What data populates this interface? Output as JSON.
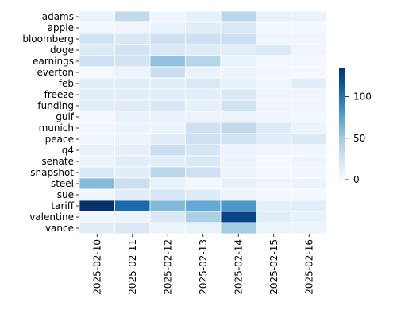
{
  "chart_data": {
    "type": "heatmap",
    "rows": [
      "adams",
      "apple",
      "bloomberg",
      "doge",
      "earnings",
      "everton",
      "feb",
      "freeze",
      "funding",
      "gulf",
      "munich",
      "peace",
      "q4",
      "senate",
      "snapshot",
      "steel",
      "sue",
      "tariff",
      "valentine",
      "vance"
    ],
    "columns": [
      "2025-02-10",
      "2025-02-11",
      "2025-02-12",
      "2025-02-13",
      "2025-02-14",
      "2025-02-15",
      "2025-02-16"
    ],
    "values": [
      [
        8,
        35,
        5,
        12,
        38,
        10,
        8
      ],
      [
        3,
        6,
        10,
        15,
        20,
        3,
        3
      ],
      [
        25,
        20,
        28,
        28,
        30,
        6,
        6
      ],
      [
        18,
        25,
        20,
        16,
        15,
        18,
        6
      ],
      [
        28,
        25,
        55,
        40,
        10,
        3,
        3
      ],
      [
        3,
        8,
        30,
        10,
        8,
        5,
        3
      ],
      [
        15,
        15,
        15,
        20,
        12,
        6,
        15
      ],
      [
        15,
        15,
        15,
        15,
        20,
        6,
        6
      ],
      [
        15,
        16,
        20,
        12,
        25,
        6,
        6
      ],
      [
        3,
        10,
        10,
        8,
        8,
        6,
        3
      ],
      [
        5,
        8,
        8,
        28,
        35,
        18,
        8
      ],
      [
        5,
        8,
        15,
        28,
        25,
        15,
        18
      ],
      [
        10,
        12,
        32,
        22,
        8,
        5,
        5
      ],
      [
        8,
        15,
        15,
        20,
        8,
        3,
        6
      ],
      [
        20,
        15,
        38,
        28,
        8,
        3,
        5
      ],
      [
        60,
        30,
        10,
        3,
        10,
        6,
        8
      ],
      [
        5,
        15,
        22,
        16,
        8,
        3,
        3
      ],
      [
        135,
        105,
        60,
        70,
        80,
        12,
        15
      ],
      [
        5,
        8,
        20,
        45,
        125,
        15,
        10
      ],
      [
        15,
        20,
        8,
        10,
        48,
        8,
        8
      ]
    ],
    "vmin": 0,
    "vmax": 135,
    "colorbar_ticks": [
      0,
      50,
      100
    ],
    "colormap": [
      "#f7fbff",
      "#deebf7",
      "#c6dbef",
      "#9ecae1",
      "#6baed6",
      "#4292c6",
      "#2171b5",
      "#08519c",
      "#08306b"
    ],
    "grid_line_color": "#ffffff"
  }
}
